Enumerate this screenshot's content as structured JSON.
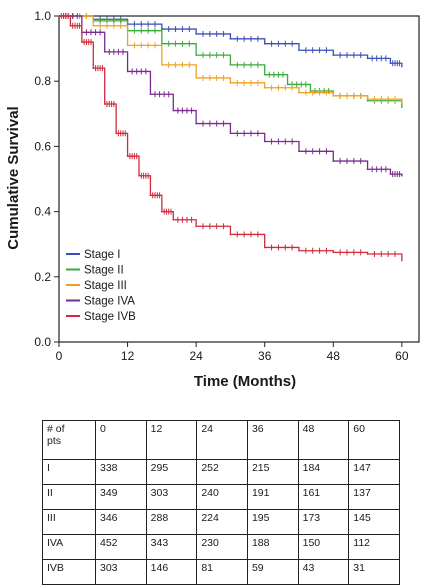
{
  "chart_data": {
    "type": "line",
    "xlabel": "Time (Months)",
    "ylabel": "Cumulative Survival",
    "xlim": [
      0,
      63
    ],
    "ylim": [
      0,
      1.0
    ],
    "xticks": [
      "0",
      "12",
      "24",
      "36",
      "48",
      "60"
    ],
    "yticks": [
      "0.0",
      "0.2",
      "0.4",
      "0.6",
      "0.8",
      "1.0"
    ],
    "legend_position": "bottom-left",
    "grid": false,
    "series": [
      {
        "name": "Stage I",
        "color": "#3a4fb8",
        "points": [
          [
            0,
            1.0
          ],
          [
            6,
            0.99
          ],
          [
            12,
            0.975
          ],
          [
            18,
            0.96
          ],
          [
            24,
            0.945
          ],
          [
            30,
            0.93
          ],
          [
            36,
            0.915
          ],
          [
            42,
            0.895
          ],
          [
            48,
            0.88
          ],
          [
            54,
            0.87
          ],
          [
            58,
            0.855
          ],
          [
            60,
            0.845
          ]
        ]
      },
      {
        "name": "Stage II",
        "color": "#3aaa3a",
        "points": [
          [
            0,
            1.0
          ],
          [
            6,
            0.985
          ],
          [
            12,
            0.955
          ],
          [
            18,
            0.915
          ],
          [
            24,
            0.88
          ],
          [
            30,
            0.85
          ],
          [
            36,
            0.82
          ],
          [
            40,
            0.79
          ],
          [
            44,
            0.77
          ],
          [
            48,
            0.755
          ],
          [
            54,
            0.74
          ],
          [
            60,
            0.72
          ]
        ]
      },
      {
        "name": "Stage III",
        "color": "#f0a020",
        "points": [
          [
            0,
            1.0
          ],
          [
            6,
            0.97
          ],
          [
            12,
            0.91
          ],
          [
            18,
            0.85
          ],
          [
            24,
            0.81
          ],
          [
            30,
            0.795
          ],
          [
            36,
            0.78
          ],
          [
            42,
            0.765
          ],
          [
            48,
            0.755
          ],
          [
            54,
            0.745
          ],
          [
            60,
            0.735
          ]
        ]
      },
      {
        "name": "Stage IVA",
        "color": "#7a2a90",
        "points": [
          [
            0,
            1.0
          ],
          [
            4,
            0.95
          ],
          [
            8,
            0.89
          ],
          [
            12,
            0.83
          ],
          [
            16,
            0.76
          ],
          [
            20,
            0.71
          ],
          [
            24,
            0.67
          ],
          [
            30,
            0.64
          ],
          [
            36,
            0.615
          ],
          [
            42,
            0.585
          ],
          [
            48,
            0.555
          ],
          [
            54,
            0.53
          ],
          [
            58,
            0.515
          ],
          [
            60,
            0.51
          ]
        ]
      },
      {
        "name": "Stage IVB",
        "color": "#d02a3a",
        "points": [
          [
            0,
            1.0
          ],
          [
            2,
            0.97
          ],
          [
            4,
            0.92
          ],
          [
            6,
            0.84
          ],
          [
            8,
            0.73
          ],
          [
            10,
            0.64
          ],
          [
            12,
            0.57
          ],
          [
            14,
            0.51
          ],
          [
            16,
            0.45
          ],
          [
            18,
            0.4
          ],
          [
            20,
            0.375
          ],
          [
            24,
            0.355
          ],
          [
            30,
            0.33
          ],
          [
            36,
            0.29
          ],
          [
            42,
            0.28
          ],
          [
            48,
            0.275
          ],
          [
            54,
            0.27
          ],
          [
            60,
            0.25
          ]
        ]
      }
    ]
  },
  "risk_table": {
    "header_line1": "# of",
    "header_line2": "pts",
    "time_points": [
      "0",
      "12",
      "24",
      "36",
      "48",
      "60"
    ],
    "rows": [
      {
        "stage": "I",
        "values": [
          "338",
          "295",
          "252",
          "215",
          "184",
          "147"
        ]
      },
      {
        "stage": "II",
        "values": [
          "349",
          "303",
          "240",
          "191",
          "161",
          "137"
        ]
      },
      {
        "stage": "III",
        "values": [
          "346",
          "288",
          "224",
          "195",
          "173",
          "145"
        ]
      },
      {
        "stage": "IVA",
        "values": [
          "452",
          "343",
          "230",
          "188",
          "150",
          "112"
        ]
      },
      {
        "stage": "IVB",
        "values": [
          "303",
          "146",
          "81",
          "59",
          "43",
          "31"
        ]
      }
    ]
  }
}
